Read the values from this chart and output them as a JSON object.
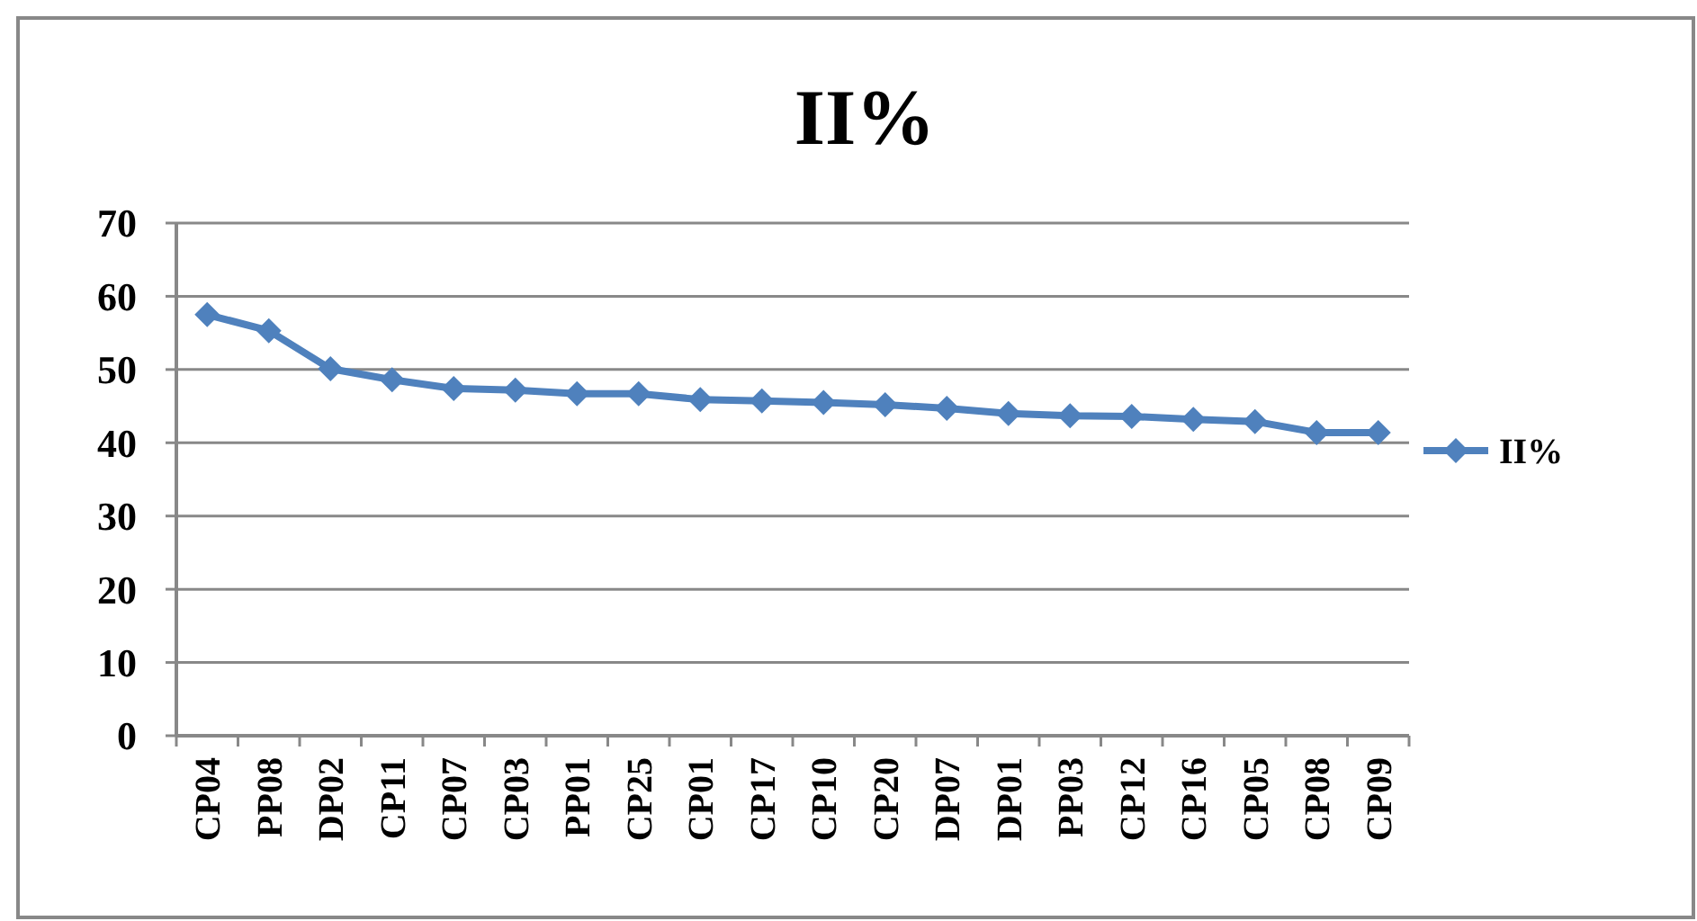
{
  "chart_data": {
    "type": "line",
    "title": "II%",
    "categories": [
      "CP04",
      "PP08",
      "DP02",
      "CP11",
      "CP07",
      "CP03",
      "PP01",
      "CP25",
      "CP01",
      "CP17",
      "CP10",
      "CP20",
      "DP07",
      "DP01",
      "PP03",
      "CP12",
      "CP16",
      "CP05",
      "CP08",
      "CP09"
    ],
    "series": [
      {
        "name": "II%",
        "color": "#4f81bd",
        "values": [
          57.5,
          55.3,
          50.1,
          48.6,
          47.4,
          47.2,
          46.7,
          46.7,
          45.9,
          45.7,
          45.5,
          45.2,
          44.7,
          44.0,
          43.7,
          43.6,
          43.2,
          42.9,
          41.4,
          41.4
        ]
      }
    ],
    "ylim": [
      0,
      70
    ],
    "yticks": [
      0,
      10,
      20,
      30,
      40,
      50,
      60,
      70
    ],
    "grid": "y",
    "legend": "right",
    "marker": "diamond",
    "line_style": "solid"
  }
}
